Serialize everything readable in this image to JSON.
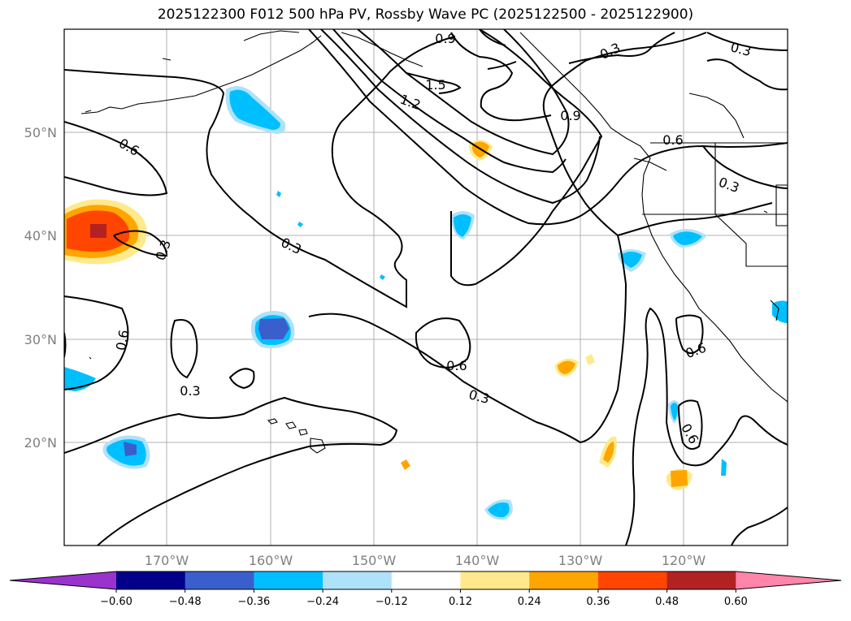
{
  "title": "2025122300 F012 500 hPa PV, Rossby Wave PC (2025122500 - 2025122900)",
  "lat_labels": [
    "50°N",
    "40°N",
    "30°N",
    "20°N"
  ],
  "lon_labels": [
    "170°W",
    "160°W",
    "150°W",
    "140°W",
    "130°W",
    "120°W"
  ],
  "contour_labels": [
    "0.9",
    "1.5",
    "1.2",
    "0.9",
    "0.3",
    "0.3",
    "0.6",
    "0.6",
    "0.3",
    "0.3",
    "0.3",
    "0.6",
    "0.6",
    "0.3",
    "0.3",
    "0.6",
    "0.6"
  ],
  "colorbar": {
    "ticks": [
      "−0.60",
      "−0.48",
      "−0.36",
      "−0.24",
      "−0.12",
      "0.12",
      "0.24",
      "0.36",
      "0.48",
      "0.60"
    ],
    "colors": [
      "#9933cc",
      "#00008b",
      "#3a5fcd",
      "#00bfff",
      "#aee2fa",
      "#ffffff",
      "#ffe98a",
      "#ffa500",
      "#ff4500",
      "#b22222",
      "#ff85aa"
    ]
  }
}
